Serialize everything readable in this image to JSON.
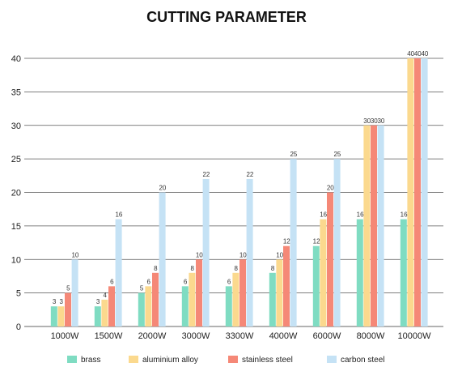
{
  "chart_data": {
    "type": "bar",
    "title": "CUTTING PARAMETER",
    "xlabel": "",
    "ylabel": "",
    "ylim": [
      0,
      40
    ],
    "yticks": [
      0,
      5,
      10,
      15,
      20,
      25,
      30,
      35,
      40
    ],
    "grid": true,
    "legend_position": "bottom",
    "categories": [
      "1000W",
      "1500W",
      "2000W",
      "3000W",
      "3300W",
      "4000W",
      "6000W",
      "8000W",
      "10000W"
    ],
    "series": [
      {
        "name": "brass",
        "color": "#7fdcc2",
        "values": [
          3,
          3,
          5,
          6,
          6,
          8,
          12,
          16,
          16
        ]
      },
      {
        "name": "aluminium alloy",
        "color": "#fbd98e",
        "values": [
          3,
          4,
          6,
          8,
          8,
          10,
          16,
          30,
          40
        ]
      },
      {
        "name": "stainless steel",
        "color": "#f58877",
        "values": [
          5,
          6,
          8,
          10,
          10,
          12,
          20,
          30,
          40
        ]
      },
      {
        "name": "carbon steel",
        "color": "#c5e2f5",
        "values": [
          10,
          16,
          20,
          22,
          22,
          25,
          25,
          30,
          40
        ]
      }
    ]
  }
}
